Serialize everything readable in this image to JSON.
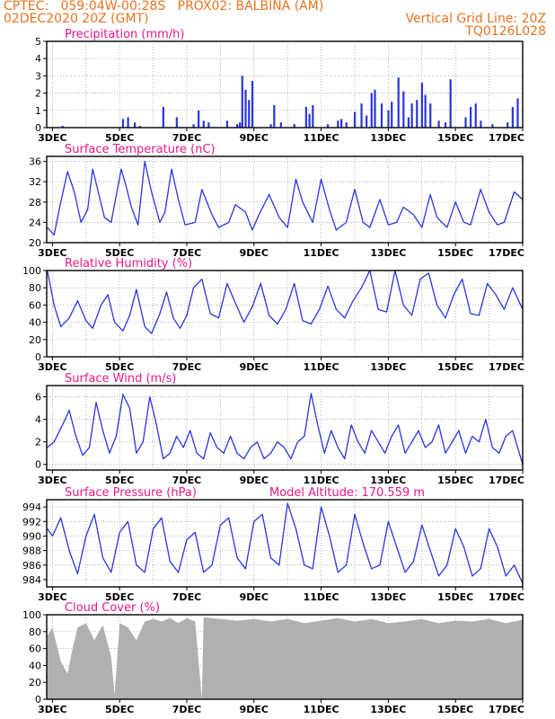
{
  "header": {
    "line1_left": "CPTEC:   059:04W-00:28S   PROX02: BALBINA (AM)",
    "line2_left": "02DEC2020 20Z (GMT)",
    "line2_right": "Vertical Grid Line: 20Z",
    "line3_right": "TQ0126L028"
  },
  "colors": {
    "header": "#e8731e",
    "panel_title": "#e8188a",
    "series": "#2a35e0",
    "cloud_fill": "#b0b0b0",
    "grid": "#999999"
  },
  "x_tick_labels": [
    "3DEC",
    "5DEC",
    "7DEC",
    "9DEC",
    "11DEC",
    "13DEC",
    "15DEC",
    "17DEC"
  ],
  "x_range_days": [
    2.83,
    17.0
  ],
  "chart_data": [
    {
      "type": "bar",
      "title": "Precipitation (mm/h)",
      "ylim": [
        0,
        5
      ],
      "yticks": [
        0,
        1,
        2,
        3,
        4,
        5
      ],
      "grid": true,
      "series": [
        {
          "x_dec": [
            3.3,
            5.1,
            5.25,
            5.45,
            5.6,
            6.3,
            6.7,
            7.2,
            7.35,
            7.5,
            7.65,
            8.2,
            8.5,
            8.58,
            8.65,
            8.75,
            8.85,
            8.95,
            9.5,
            9.6,
            9.8,
            10.2,
            10.55,
            10.65,
            10.75,
            11.2,
            11.5,
            11.6,
            11.75,
            12.0,
            12.2,
            12.35,
            12.5,
            12.6,
            12.8,
            13.0,
            13.1,
            13.3,
            13.45,
            13.6,
            13.7,
            13.85,
            14.0,
            14.1,
            14.25,
            14.5,
            14.7,
            14.85,
            15.3,
            15.45,
            15.6,
            15.75,
            16.1,
            16.55,
            16.7,
            16.85
          ],
          "values": [
            0.1,
            0.5,
            0.6,
            0.3,
            0.1,
            1.2,
            0.6,
            0.2,
            1.0,
            0.4,
            0.3,
            0.4,
            0.2,
            0.3,
            3.0,
            2.2,
            1.6,
            2.7,
            0.2,
            1.3,
            0.3,
            0.2,
            1.2,
            0.8,
            1.3,
            0.2,
            0.4,
            0.5,
            0.3,
            0.9,
            1.4,
            0.7,
            2.0,
            2.2,
            1.4,
            1.0,
            1.5,
            2.9,
            2.1,
            0.6,
            1.4,
            1.6,
            2.6,
            1.9,
            1.4,
            0.4,
            0.3,
            2.8,
            0.6,
            1.2,
            1.4,
            0.4,
            0.2,
            0.3,
            1.2,
            1.7
          ]
        }
      ]
    },
    {
      "type": "line",
      "title": "Surface Temperature (nC)",
      "ylim": [
        20,
        37
      ],
      "yticks": [
        20,
        24,
        28,
        32,
        36
      ],
      "grid": true,
      "series": [
        {
          "x_dec": [
            2.85,
            3.05,
            3.25,
            3.45,
            3.65,
            3.85,
            4.05,
            4.2,
            4.55,
            4.75,
            5.05,
            5.2,
            5.35,
            5.55,
            5.75,
            5.95,
            6.2,
            6.35,
            6.55,
            6.75,
            6.95,
            7.25,
            7.45,
            7.75,
            7.95,
            8.25,
            8.45,
            8.75,
            8.95,
            9.15,
            9.45,
            9.75,
            10.0,
            10.25,
            10.45,
            10.75,
            11.0,
            11.25,
            11.45,
            11.75,
            12.0,
            12.25,
            12.45,
            12.75,
            13.0,
            13.25,
            13.45,
            13.75,
            14.0,
            14.25,
            14.45,
            14.75,
            15.0,
            15.25,
            15.45,
            15.75,
            16.0,
            16.25,
            16.45,
            16.75,
            17.0
          ],
          "values": [
            23.0,
            21.5,
            28.0,
            34.0,
            30.0,
            24.0,
            26.5,
            34.5,
            25.0,
            24.0,
            34.5,
            31.0,
            27.0,
            23.5,
            36.0,
            30.0,
            24.0,
            26.0,
            34.5,
            28.5,
            23.5,
            24.0,
            30.5,
            25.5,
            23.0,
            24.0,
            27.5,
            26.0,
            22.5,
            25.5,
            29.5,
            25.0,
            23.0,
            32.5,
            28.0,
            24.0,
            32.5,
            26.5,
            22.5,
            24.0,
            30.5,
            24.0,
            23.0,
            28.5,
            23.5,
            24.0,
            27.0,
            25.5,
            23.0,
            29.5,
            25.0,
            23.0,
            28.0,
            24.0,
            23.5,
            30.5,
            26.0,
            23.5,
            24.0,
            30.0,
            28.5
          ]
        }
      ]
    },
    {
      "type": "line",
      "title": "Relative Humidity (%)",
      "ylim": [
        0,
        100
      ],
      "yticks": [
        0,
        20,
        40,
        60,
        80,
        100
      ],
      "grid": true,
      "series": [
        {
          "x_dec": [
            2.85,
            3.05,
            3.25,
            3.5,
            3.75,
            4.0,
            4.2,
            4.45,
            4.65,
            4.85,
            5.1,
            5.3,
            5.5,
            5.75,
            5.95,
            6.2,
            6.4,
            6.6,
            6.8,
            7.0,
            7.2,
            7.45,
            7.7,
            7.95,
            8.2,
            8.45,
            8.7,
            8.95,
            9.2,
            9.45,
            9.7,
            9.95,
            10.2,
            10.45,
            10.7,
            10.95,
            11.2,
            11.45,
            11.7,
            11.95,
            12.2,
            12.45,
            12.7,
            12.95,
            13.2,
            13.45,
            13.7,
            13.95,
            14.2,
            14.45,
            14.7,
            14.95,
            15.2,
            15.45,
            15.7,
            15.95,
            16.2,
            16.45,
            16.7,
            17.0
          ],
          "values": [
            100.0,
            60.0,
            35.0,
            45.0,
            65.0,
            42.0,
            33.0,
            60.0,
            72.0,
            40.0,
            30.0,
            48.0,
            78.0,
            35.0,
            27.0,
            50.0,
            75.0,
            45.0,
            33.0,
            48.0,
            80.0,
            90.0,
            50.0,
            45.0,
            85.0,
            62.0,
            40.0,
            58.0,
            85.0,
            48.0,
            38.0,
            55.0,
            85.0,
            42.0,
            38.0,
            55.0,
            82.0,
            55.0,
            45.0,
            65.0,
            80.0,
            100.0,
            55.0,
            52.0,
            100.0,
            60.0,
            48.0,
            90.0,
            97.0,
            60.0,
            45.0,
            72.0,
            90.0,
            50.0,
            48.0,
            85.0,
            72.0,
            55.0,
            80.0,
            55.0
          ]
        }
      ]
    },
    {
      "type": "line",
      "title": "Surface Wind (m/s)",
      "ylim": [
        -0.5,
        7.0
      ],
      "yticks": [
        0,
        2,
        4,
        6
      ],
      "grid": true,
      "series": [
        {
          "x_dec": [
            2.85,
            3.05,
            3.3,
            3.5,
            3.7,
            3.9,
            4.1,
            4.3,
            4.5,
            4.7,
            4.9,
            5.1,
            5.3,
            5.5,
            5.7,
            5.9,
            6.1,
            6.3,
            6.5,
            6.7,
            6.9,
            7.1,
            7.3,
            7.5,
            7.7,
            7.9,
            8.1,
            8.3,
            8.5,
            8.7,
            8.9,
            9.1,
            9.3,
            9.5,
            9.7,
            9.9,
            10.1,
            10.3,
            10.5,
            10.7,
            10.9,
            11.1,
            11.3,
            11.5,
            11.7,
            11.9,
            12.1,
            12.3,
            12.5,
            12.7,
            12.9,
            13.1,
            13.3,
            13.5,
            13.7,
            13.9,
            14.1,
            14.3,
            14.5,
            14.7,
            14.9,
            15.1,
            15.3,
            15.5,
            15.7,
            15.9,
            16.1,
            16.3,
            16.5,
            16.7,
            17.0
          ],
          "values": [
            1.5,
            2.0,
            3.5,
            4.8,
            2.5,
            0.8,
            1.5,
            5.5,
            3.0,
            1.0,
            2.5,
            6.2,
            5.0,
            1.0,
            2.0,
            6.0,
            3.5,
            0.5,
            1.0,
            2.5,
            1.5,
            3.0,
            1.0,
            0.5,
            2.8,
            1.5,
            1.0,
            2.5,
            1.0,
            0.5,
            1.5,
            2.0,
            0.5,
            1.0,
            2.0,
            1.5,
            0.5,
            2.0,
            2.5,
            6.3,
            3.5,
            1.0,
            3.0,
            1.5,
            0.5,
            3.5,
            2.0,
            1.0,
            3.0,
            2.0,
            1.0,
            2.5,
            3.5,
            1.0,
            2.0,
            3.0,
            1.5,
            2.0,
            3.5,
            1.0,
            2.0,
            3.0,
            1.0,
            2.5,
            2.0,
            4.0,
            1.5,
            1.0,
            2.5,
            3.0,
            0.0
          ]
        }
      ]
    },
    {
      "type": "line",
      "title": "Surface Pressure (hPa)",
      "subtitle": "Model Altitude: 170.559 m",
      "ylim": [
        983,
        995
      ],
      "yticks": [
        984,
        986,
        988,
        990,
        992,
        994
      ],
      "grid": true,
      "series": [
        {
          "x_dec": [
            2.85,
            3.0,
            3.25,
            3.5,
            3.75,
            4.0,
            4.25,
            4.5,
            4.75,
            5.0,
            5.25,
            5.5,
            5.75,
            6.0,
            6.25,
            6.5,
            6.75,
            7.0,
            7.25,
            7.5,
            7.75,
            8.0,
            8.25,
            8.5,
            8.75,
            9.0,
            9.25,
            9.5,
            9.75,
            10.0,
            10.25,
            10.5,
            10.75,
            11.0,
            11.25,
            11.5,
            11.75,
            12.0,
            12.25,
            12.5,
            12.75,
            13.0,
            13.25,
            13.5,
            13.75,
            14.0,
            14.25,
            14.5,
            14.75,
            15.0,
            15.25,
            15.5,
            15.75,
            16.0,
            16.25,
            16.5,
            16.75,
            17.0
          ],
          "values": [
            991.0,
            990.0,
            992.5,
            988.0,
            984.8,
            990.0,
            993.0,
            987.0,
            985.0,
            990.5,
            992.0,
            986.0,
            985.0,
            991.0,
            992.5,
            986.5,
            985.0,
            989.5,
            990.5,
            985.0,
            986.0,
            991.5,
            992.5,
            987.0,
            985.5,
            992.0,
            993.0,
            987.0,
            986.0,
            994.5,
            991.0,
            986.0,
            985.5,
            994.0,
            990.0,
            985.0,
            986.0,
            993.0,
            989.0,
            985.5,
            986.0,
            992.0,
            988.5,
            985.0,
            986.5,
            991.5,
            988.0,
            984.5,
            986.0,
            991.0,
            988.5,
            984.5,
            985.5,
            991.0,
            988.5,
            984.5,
            986.0,
            983.5
          ]
        }
      ]
    },
    {
      "type": "bar",
      "title": "Cloud Cover (%)",
      "ylim": [
        0,
        100
      ],
      "yticks": [
        0,
        20,
        40,
        60,
        80,
        100
      ],
      "grid": true,
      "series": [
        {
          "x_dec": [
            2.85,
            3.0,
            3.25,
            3.45,
            3.6,
            3.75,
            4.0,
            4.25,
            4.5,
            4.75,
            4.85,
            5.0,
            5.25,
            5.5,
            5.75,
            6.0,
            6.25,
            6.5,
            6.75,
            7.0,
            7.25,
            7.45,
            7.5,
            7.75,
            8.0,
            8.5,
            9.0,
            9.5,
            10.0,
            10.5,
            11.0,
            11.5,
            12.0,
            12.5,
            13.0,
            13.5,
            14.0,
            14.5,
            15.0,
            15.5,
            16.0,
            16.5,
            17.0
          ],
          "values": [
            75,
            85,
            45,
            30,
            60,
            85,
            90,
            70,
            88,
            50,
            5,
            90,
            85,
            70,
            92,
            95,
            92,
            96,
            90,
            96,
            92,
            0,
            97,
            96,
            95,
            93,
            95,
            92,
            95,
            90,
            93,
            96,
            92,
            95,
            90,
            92,
            95,
            90,
            93,
            92,
            95,
            90,
            94
          ]
        }
      ]
    }
  ]
}
